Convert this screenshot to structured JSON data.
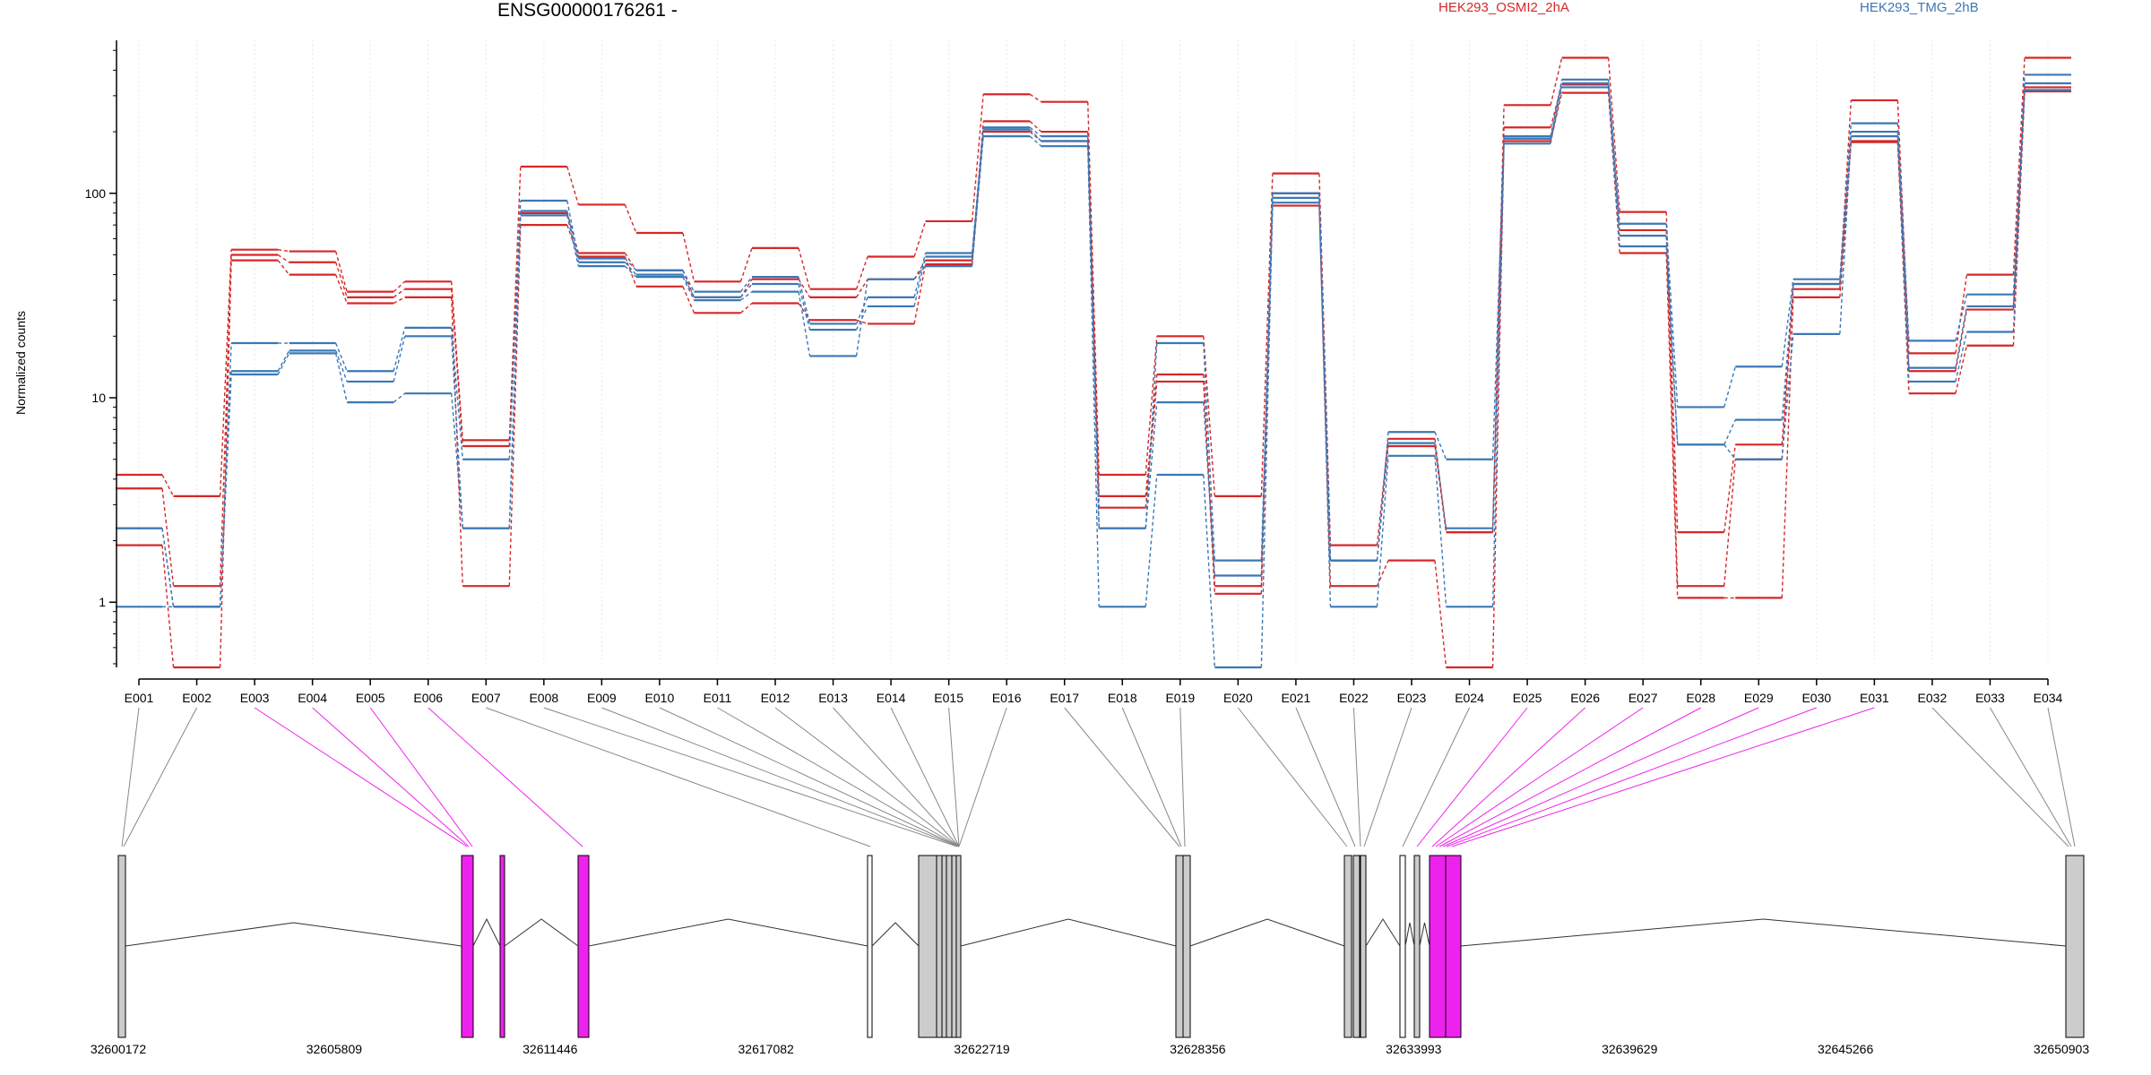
{
  "chart_data": {
    "type": "line",
    "title": "ENSG00000176261 -",
    "ylabel": "Normalized counts",
    "yscale": "log",
    "ylim": [
      0.48,
      560
    ],
    "yticks": [
      "1",
      "10",
      "100"
    ],
    "categories": [
      "E001",
      "E002",
      "E003",
      "E004",
      "E005",
      "E006",
      "E007",
      "E008",
      "E009",
      "E010",
      "E011",
      "E012",
      "E013",
      "E014",
      "E015",
      "E016",
      "E017",
      "E018",
      "E019",
      "E020",
      "E021",
      "E022",
      "E023",
      "E024",
      "E025",
      "E026",
      "E027",
      "E028",
      "E029",
      "E030",
      "E031",
      "E032",
      "E033",
      "E034"
    ],
    "groups": [
      {
        "name": "HEK293_OSMI2_2hA",
        "color": "#d62728"
      },
      {
        "name": "HEK293_TMG_2hB",
        "color": "#3a78b5"
      }
    ],
    "series": [
      {
        "group": 0,
        "values": [
          4.2,
          3.3,
          53,
          52,
          33,
          37,
          6.2,
          135,
          88,
          64,
          37,
          54,
          34,
          49,
          73,
          305,
          280,
          4.2,
          20,
          3.3,
          125,
          1.9,
          6.3,
          2.2,
          270,
          460,
          81,
          2.2,
          5.9,
          36,
          285,
          16.5,
          40,
          460
        ]
      },
      {
        "group": 0,
        "values": [
          3.6,
          1.2,
          50,
          46,
          31,
          34,
          5.8,
          80,
          51,
          42,
          31,
          38,
          31,
          38,
          47,
          225,
          200,
          3.3,
          13,
          1.2,
          100,
          1.6,
          5.8,
          2.2,
          210,
          340,
          66,
          1.2,
          5.0,
          34,
          180,
          13.5,
          27,
          330
        ]
      },
      {
        "group": 0,
        "values": [
          1.9,
          0.48,
          47,
          40,
          29,
          31,
          1.2,
          70,
          49,
          35,
          26,
          29,
          24,
          23,
          45,
          200,
          180,
          2.9,
          12,
          1.1,
          87,
          1.2,
          1.6,
          0.48,
          180,
          310,
          51,
          1.05,
          1.05,
          31,
          178,
          10.5,
          18,
          315
        ]
      },
      {
        "group": 1,
        "values": [
          2.3,
          0.95,
          18.5,
          18.5,
          13.5,
          22,
          5.0,
          92,
          48,
          42,
          33,
          39,
          23,
          31,
          51,
          210,
          190,
          2.3,
          18.5,
          1.6,
          100,
          1.6,
          6.8,
          5.0,
          190,
          360,
          71,
          9.0,
          14.2,
          38,
          220,
          19,
          32,
          380
        ]
      },
      {
        "group": 1,
        "values": [
          2.3,
          0.95,
          13.5,
          17,
          12,
          20,
          2.3,
          82,
          46,
          40,
          31,
          36,
          21.5,
          28,
          49,
          205,
          180,
          2.3,
          9.5,
          1.35,
          95,
          1.6,
          6.0,
          2.3,
          185,
          345,
          62,
          5.9,
          7.8,
          36,
          200,
          14,
          28,
          345
        ]
      },
      {
        "group": 1,
        "values": [
          0.95,
          0.95,
          13.0,
          16.5,
          9.5,
          10.5,
          2.3,
          78,
          44,
          39,
          30,
          33,
          16,
          38,
          44,
          190,
          170,
          0.95,
          4.2,
          0.48,
          90,
          0.95,
          5.2,
          0.95,
          175,
          330,
          55,
          5.9,
          5.0,
          20.5,
          190,
          12,
          21,
          320
        ]
      }
    ],
    "gene_model": {
      "coordinate_ticks": [
        "32600172",
        "32605809",
        "32611446",
        "32617082",
        "32622719",
        "32628356",
        "32633993",
        "32639629",
        "32645266",
        "32650903"
      ],
      "exon_colors": {
        "default": "#cccccc",
        "differential": "#ee22ee"
      }
    }
  }
}
